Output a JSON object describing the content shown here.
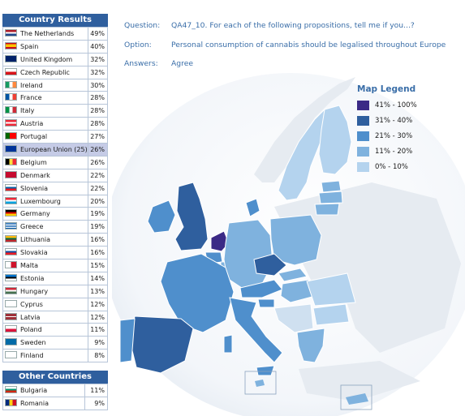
{
  "question_label": "Question:",
  "question_text": "QA47_10. For each of the following propositions, tell me if you...?",
  "option_label": "Option:",
  "option_text": "Personal consumption of cannabis should be legalised throughout Europe",
  "answers_label": "Answers:",
  "answers_text": "Agree",
  "country_results": {
    "title": "Country Results",
    "rows": [
      {
        "country": "The Netherlands",
        "value": "49%",
        "flag": "nl"
      },
      {
        "country": "Spain",
        "value": "40%",
        "flag": "es"
      },
      {
        "country": "United Kingdom",
        "value": "32%",
        "flag": "uk"
      },
      {
        "country": "Czech Republic",
        "value": "32%",
        "flag": "cz"
      },
      {
        "country": "Ireland",
        "value": "30%",
        "flag": "ie"
      },
      {
        "country": "France",
        "value": "28%",
        "flag": "fr"
      },
      {
        "country": "Italy",
        "value": "28%",
        "flag": "it"
      },
      {
        "country": "Austria",
        "value": "28%",
        "flag": "at"
      },
      {
        "country": "Portugal",
        "value": "27%",
        "flag": "pt"
      },
      {
        "country": "European Union (25)",
        "value": "26%",
        "flag": "eu",
        "highlight": true
      },
      {
        "country": "Belgium",
        "value": "26%",
        "flag": "be"
      },
      {
        "country": "Denmark",
        "value": "22%",
        "flag": "dk"
      },
      {
        "country": "Slovenia",
        "value": "22%",
        "flag": "si"
      },
      {
        "country": "Luxembourg",
        "value": "20%",
        "flag": "lu"
      },
      {
        "country": "Germany",
        "value": "19%",
        "flag": "de"
      },
      {
        "country": "Greece",
        "value": "19%",
        "flag": "gr"
      },
      {
        "country": "Lithuania",
        "value": "16%",
        "flag": "lt"
      },
      {
        "country": "Slovakia",
        "value": "16%",
        "flag": "sk"
      },
      {
        "country": "Malta",
        "value": "15%",
        "flag": "mt"
      },
      {
        "country": "Estonia",
        "value": "14%",
        "flag": "ee"
      },
      {
        "country": "Hungary",
        "value": "13%",
        "flag": "hu"
      },
      {
        "country": "Cyprus",
        "value": "12%",
        "flag": "cy"
      },
      {
        "country": "Latvia",
        "value": "12%",
        "flag": "lv"
      },
      {
        "country": "Poland",
        "value": "11%",
        "flag": "pl"
      },
      {
        "country": "Sweden",
        "value": "9%",
        "flag": "se"
      },
      {
        "country": "Finland",
        "value": "8%",
        "flag": "fi"
      }
    ]
  },
  "other_countries": {
    "title": "Other Countries",
    "rows": [
      {
        "country": "Bulgaria",
        "value": "11%",
        "flag": "bg"
      },
      {
        "country": "Romania",
        "value": "9%",
        "flag": "ro"
      }
    ]
  },
  "legend": {
    "title": "Map Legend",
    "items": [
      {
        "label": "41% - 100%",
        "color": "#3b2a86"
      },
      {
        "label": "31% - 40%",
        "color": "#2f5f9e"
      },
      {
        "label": "21% - 30%",
        "color": "#4f8fcc"
      },
      {
        "label": "11% - 20%",
        "color": "#7fb2de"
      },
      {
        "label": "0% - 10%",
        "color": "#b4d3ee"
      }
    ]
  },
  "colors": {
    "header_bg": "#2f5f9e",
    "accent_text": "#3a6ea8",
    "eu_row_bg": "#c5cbe6"
  }
}
